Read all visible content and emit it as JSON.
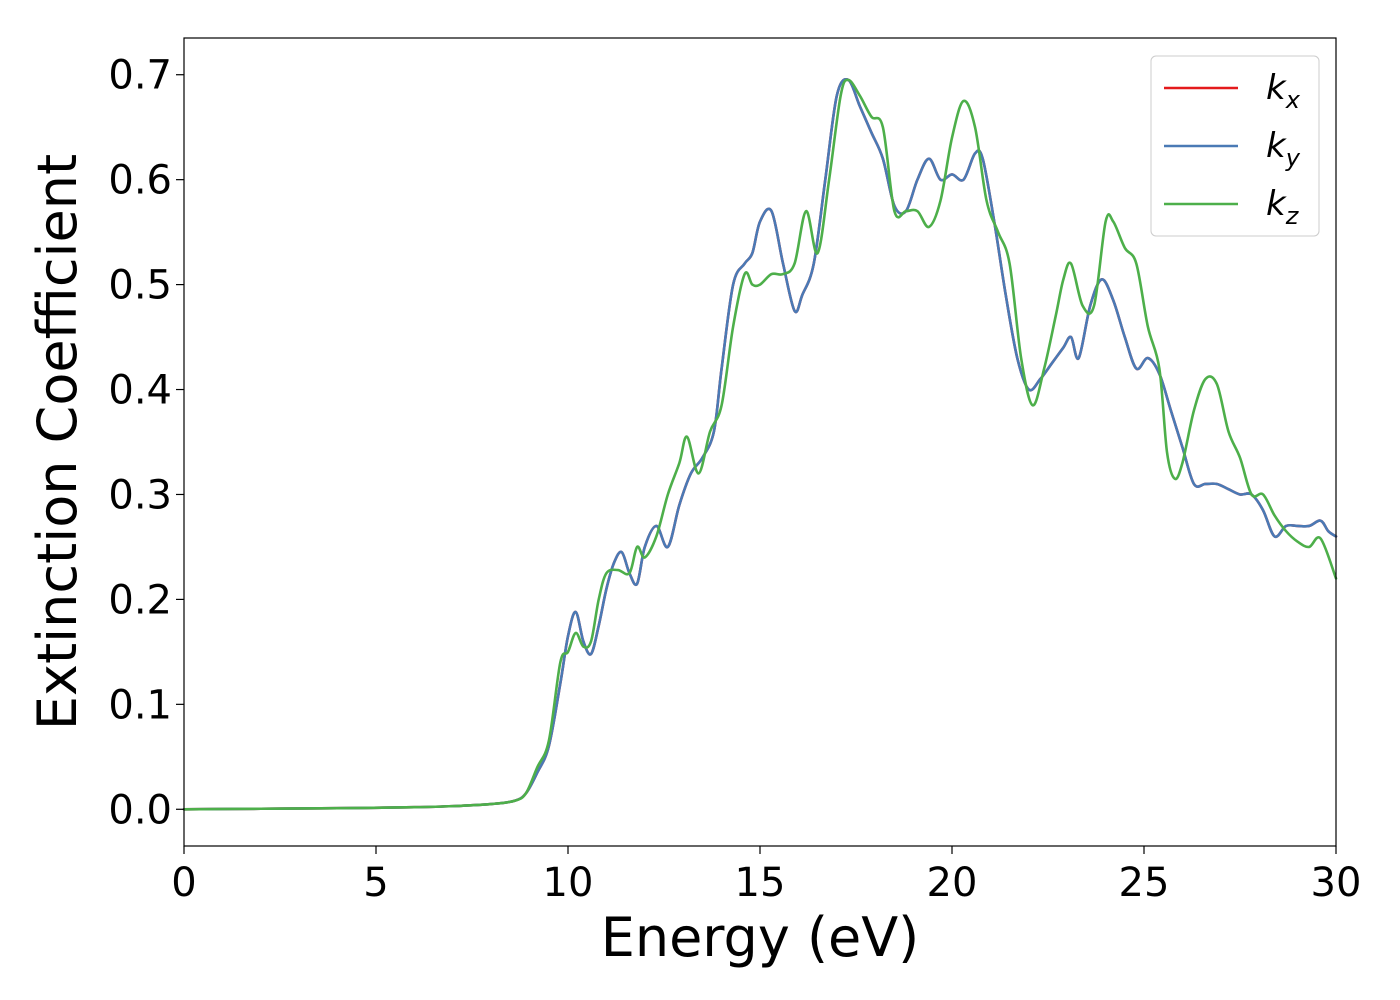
{
  "chart_data": {
    "type": "line",
    "xlabel": "Energy (eV)",
    "ylabel": "Extinction Coefficient",
    "xlim": [
      0,
      30
    ],
    "ylim": [
      -0.035,
      0.735
    ],
    "xticks": [
      0,
      5,
      10,
      15,
      20,
      25,
      30
    ],
    "xtick_labels": [
      "0",
      "5",
      "10",
      "15",
      "20",
      "25",
      "30"
    ],
    "yticks": [
      0.0,
      0.1,
      0.2,
      0.3,
      0.4,
      0.5,
      0.6,
      0.7
    ],
    "ytick_labels": [
      "0.0",
      "0.1",
      "0.2",
      "0.3",
      "0.4",
      "0.5",
      "0.6",
      "0.7"
    ],
    "grid": false,
    "legend": {
      "position": "top-right"
    },
    "series": [
      {
        "name": "k_x",
        "legend_base": "k",
        "legend_sub": "x",
        "color": "#e41a1c",
        "x": [
          0,
          2,
          4,
          6,
          7,
          8,
          8.6,
          8.9,
          9.2,
          9.5,
          9.8,
          10.0,
          10.2,
          10.4,
          10.6,
          10.8,
          11.0,
          11.2,
          11.4,
          11.6,
          11.8,
          12.0,
          12.3,
          12.6,
          12.9,
          13.2,
          13.5,
          13.8,
          14.0,
          14.3,
          14.6,
          14.8,
          15.0,
          15.3,
          15.6,
          15.9,
          16.1,
          16.4,
          16.7,
          17.0,
          17.3,
          17.6,
          17.9,
          18.2,
          18.5,
          18.8,
          19.1,
          19.4,
          19.7,
          20.0,
          20.3,
          20.6,
          20.8,
          21.1,
          21.4,
          21.7,
          22.0,
          22.3,
          22.6,
          22.9,
          23.1,
          23.3,
          23.6,
          23.9,
          24.2,
          24.5,
          24.8,
          25.1,
          25.4,
          25.7,
          26.0,
          26.3,
          26.6,
          26.9,
          27.2,
          27.5,
          27.8,
          28.1,
          28.4,
          28.7,
          29.0,
          29.3,
          29.6,
          29.8,
          30.0
        ],
        "values": [
          0.0,
          0.0005,
          0.001,
          0.002,
          0.003,
          0.005,
          0.008,
          0.015,
          0.035,
          0.06,
          0.12,
          0.165,
          0.188,
          0.16,
          0.148,
          0.175,
          0.21,
          0.235,
          0.245,
          0.225,
          0.215,
          0.25,
          0.27,
          0.25,
          0.29,
          0.32,
          0.335,
          0.36,
          0.42,
          0.5,
          0.52,
          0.53,
          0.56,
          0.57,
          0.52,
          0.475,
          0.49,
          0.52,
          0.6,
          0.68,
          0.695,
          0.67,
          0.645,
          0.62,
          0.575,
          0.57,
          0.6,
          0.62,
          0.6,
          0.605,
          0.6,
          0.625,
          0.62,
          0.56,
          0.49,
          0.43,
          0.4,
          0.41,
          0.425,
          0.44,
          0.45,
          0.43,
          0.48,
          0.505,
          0.485,
          0.45,
          0.42,
          0.43,
          0.415,
          0.38,
          0.345,
          0.31,
          0.31,
          0.31,
          0.305,
          0.3,
          0.3,
          0.285,
          0.26,
          0.27,
          0.27,
          0.27,
          0.275,
          0.265,
          0.26
        ]
      },
      {
        "name": "k_y",
        "legend_base": "k",
        "legend_sub": "y",
        "color": "#4a7ab5",
        "x": [
          0,
          2,
          4,
          6,
          7,
          8,
          8.6,
          8.9,
          9.2,
          9.5,
          9.8,
          10.0,
          10.2,
          10.4,
          10.6,
          10.8,
          11.0,
          11.2,
          11.4,
          11.6,
          11.8,
          12.0,
          12.3,
          12.6,
          12.9,
          13.2,
          13.5,
          13.8,
          14.0,
          14.3,
          14.6,
          14.8,
          15.0,
          15.3,
          15.6,
          15.9,
          16.1,
          16.4,
          16.7,
          17.0,
          17.3,
          17.6,
          17.9,
          18.2,
          18.5,
          18.8,
          19.1,
          19.4,
          19.7,
          20.0,
          20.3,
          20.6,
          20.8,
          21.1,
          21.4,
          21.7,
          22.0,
          22.3,
          22.6,
          22.9,
          23.1,
          23.3,
          23.6,
          23.9,
          24.2,
          24.5,
          24.8,
          25.1,
          25.4,
          25.7,
          26.0,
          26.3,
          26.6,
          26.9,
          27.2,
          27.5,
          27.8,
          28.1,
          28.4,
          28.7,
          29.0,
          29.3,
          29.6,
          29.8,
          30.0
        ],
        "values": [
          0.0,
          0.0005,
          0.001,
          0.002,
          0.003,
          0.005,
          0.008,
          0.015,
          0.035,
          0.06,
          0.12,
          0.165,
          0.188,
          0.16,
          0.148,
          0.175,
          0.21,
          0.235,
          0.245,
          0.225,
          0.215,
          0.25,
          0.27,
          0.25,
          0.29,
          0.32,
          0.335,
          0.36,
          0.42,
          0.5,
          0.52,
          0.53,
          0.56,
          0.57,
          0.52,
          0.475,
          0.49,
          0.52,
          0.6,
          0.68,
          0.695,
          0.67,
          0.645,
          0.62,
          0.575,
          0.57,
          0.6,
          0.62,
          0.6,
          0.605,
          0.6,
          0.625,
          0.62,
          0.56,
          0.49,
          0.43,
          0.4,
          0.41,
          0.425,
          0.44,
          0.45,
          0.43,
          0.48,
          0.505,
          0.485,
          0.45,
          0.42,
          0.43,
          0.415,
          0.38,
          0.345,
          0.31,
          0.31,
          0.31,
          0.305,
          0.3,
          0.3,
          0.285,
          0.26,
          0.27,
          0.27,
          0.27,
          0.275,
          0.265,
          0.26
        ]
      },
      {
        "name": "k_z",
        "legend_base": "k",
        "legend_sub": "z",
        "color": "#4daf4a",
        "x": [
          0,
          2,
          4,
          6,
          7,
          8,
          8.6,
          8.9,
          9.2,
          9.5,
          9.8,
          10.0,
          10.2,
          10.4,
          10.6,
          10.8,
          11.0,
          11.3,
          11.6,
          11.8,
          12.0,
          12.3,
          12.6,
          12.9,
          13.1,
          13.4,
          13.7,
          14.0,
          14.3,
          14.6,
          14.8,
          15.0,
          15.3,
          15.6,
          15.9,
          16.2,
          16.5,
          16.8,
          17.1,
          17.3,
          17.6,
          17.9,
          18.2,
          18.5,
          18.8,
          19.1,
          19.4,
          19.7,
          20.0,
          20.3,
          20.6,
          20.9,
          21.2,
          21.5,
          21.8,
          22.1,
          22.4,
          22.7,
          22.9,
          23.1,
          23.4,
          23.7,
          24.0,
          24.2,
          24.5,
          24.8,
          25.1,
          25.4,
          25.6,
          25.8,
          26.0,
          26.3,
          26.6,
          26.9,
          27.2,
          27.5,
          27.8,
          28.1,
          28.4,
          28.7,
          29.0,
          29.3,
          29.6,
          30.0
        ],
        "values": [
          0.0,
          0.0005,
          0.001,
          0.002,
          0.003,
          0.005,
          0.008,
          0.015,
          0.04,
          0.065,
          0.14,
          0.15,
          0.168,
          0.155,
          0.16,
          0.2,
          0.225,
          0.228,
          0.225,
          0.25,
          0.24,
          0.26,
          0.3,
          0.33,
          0.355,
          0.32,
          0.36,
          0.385,
          0.46,
          0.51,
          0.5,
          0.5,
          0.51,
          0.51,
          0.52,
          0.57,
          0.53,
          0.6,
          0.68,
          0.695,
          0.68,
          0.66,
          0.65,
          0.57,
          0.57,
          0.57,
          0.555,
          0.58,
          0.64,
          0.675,
          0.65,
          0.58,
          0.55,
          0.52,
          0.43,
          0.385,
          0.42,
          0.47,
          0.505,
          0.52,
          0.48,
          0.48,
          0.56,
          0.56,
          0.535,
          0.52,
          0.46,
          0.42,
          0.34,
          0.315,
          0.33,
          0.38,
          0.41,
          0.405,
          0.36,
          0.335,
          0.3,
          0.3,
          0.28,
          0.265,
          0.255,
          0.25,
          0.258,
          0.22
        ]
      }
    ]
  }
}
